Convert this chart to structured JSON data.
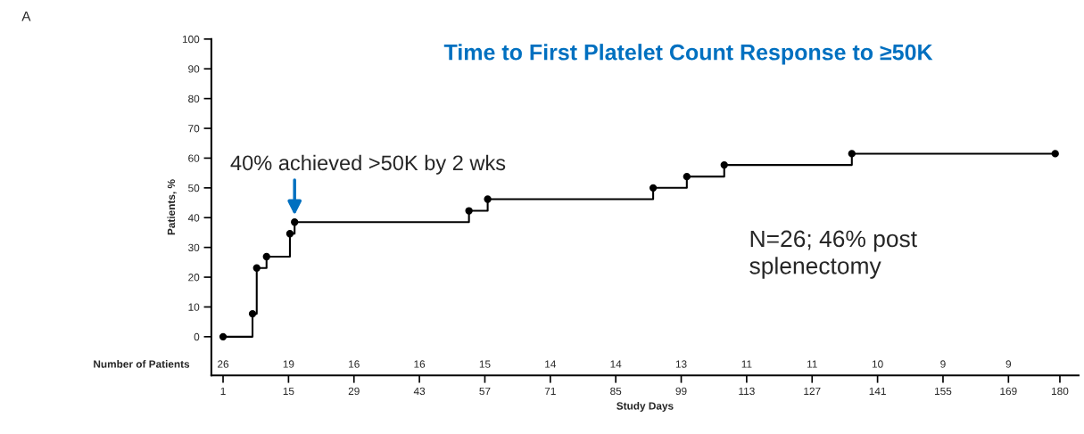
{
  "chart_data": {
    "type": "step",
    "title": "Time to First Platelet Count Response to ≥50K",
    "xlabel": "Study Days",
    "ylabel": "Patients, %",
    "x": [
      1,
      7.3,
      8.2,
      10.3,
      15.3,
      16.3,
      53.6,
      57.6,
      93,
      100.2,
      108.2,
      135.5,
      179
    ],
    "series": [
      {
        "color": "#000000",
        "values": [
          0,
          7.7,
          23.1,
          26.9,
          34.6,
          38.5,
          42.3,
          46.2,
          50.0,
          53.8,
          57.7,
          61.5,
          61.5
        ]
      }
    ],
    "marker": "circle",
    "line_style": "solid",
    "xlim": [
      -1.5,
      184
    ],
    "ylim": [
      -13,
      100
    ],
    "xticks": [
      1,
      15,
      29,
      43,
      57,
      71,
      85,
      99,
      113,
      127,
      141,
      155,
      169,
      180
    ],
    "yticks": [
      0,
      10,
      20,
      30,
      40,
      50,
      60,
      70,
      80,
      90,
      100
    ],
    "grid": false,
    "legend": false,
    "annotations": [
      "A",
      {
        "text": "40% achieved >50K by 2 wks",
        "x": 16.3,
        "y": 38.5
      },
      "N=26; 46% post\nsplenectomy",
      "Number of Patients",
      "26",
      "19",
      "16",
      "16",
      "15",
      "14",
      "14",
      "13",
      "11",
      "11",
      "10",
      "9",
      "9"
    ]
  }
}
